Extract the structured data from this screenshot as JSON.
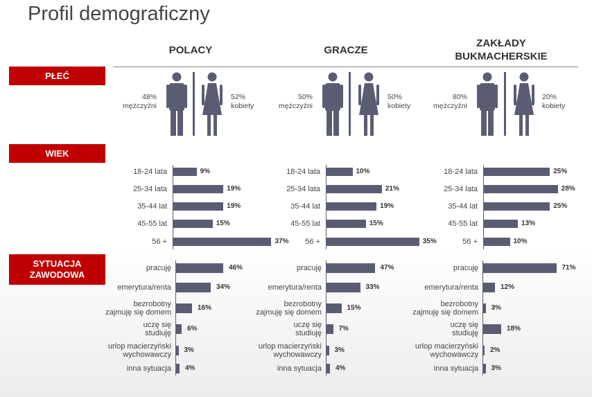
{
  "page": {
    "title": "Profil demograficzny"
  },
  "sections": {
    "sex": "PŁEĆ",
    "age": "WIEK",
    "work_line1": "SYTUACJA",
    "work_line2": "ZAWODOWA"
  },
  "colors": {
    "bar": "#5a5d72",
    "section_bg": "#c00000"
  },
  "chart_data": [
    {
      "type": "bar",
      "title": "PŁEĆ",
      "categories": [
        "mężczyźni",
        "kobiety"
      ],
      "series": [
        {
          "name": "POLACY",
          "values": [
            48,
            52
          ],
          "labels": [
            "48%",
            "52%"
          ]
        },
        {
          "name": "GRACZE",
          "values": [
            50,
            50
          ],
          "labels": [
            "50%",
            "50%"
          ]
        },
        {
          "name": "ZAKŁADY BUKMACHERSKIE",
          "values": [
            80,
            20
          ],
          "labels": [
            "80%",
            "20%"
          ]
        }
      ]
    },
    {
      "type": "bar",
      "title": "WIEK",
      "categories": [
        "18-24 lata",
        "25-34 lata",
        "35-44 lat",
        "45-55 lat",
        "56 +"
      ],
      "series": [
        {
          "name": "POLACY",
          "values": [
            9,
            19,
            19,
            15,
            37
          ],
          "labels": [
            "9%",
            "19%",
            "19%",
            "15%",
            "37%"
          ]
        },
        {
          "name": "GRACZE",
          "values": [
            10,
            21,
            19,
            15,
            35
          ],
          "labels": [
            "10%",
            "21%",
            "19%",
            "15%",
            "35%"
          ]
        },
        {
          "name": "ZAKŁADY BUKMACHERSKIE",
          "values": [
            25,
            28,
            25,
            13,
            10
          ],
          "labels": [
            "25%",
            "28%",
            "25%",
            "13%",
            "10%"
          ]
        }
      ]
    },
    {
      "type": "bar",
      "title": "SYTUACJA ZAWODOWA",
      "categories": [
        [
          "pracuję"
        ],
        [
          "emerytura/renta"
        ],
        [
          "bezrobotny",
          "zajmuję się domem"
        ],
        [
          "uczę się",
          "studiuję"
        ],
        [
          "urlop macierzyński",
          "wychowawczy"
        ],
        [
          "inna sytuacja"
        ]
      ],
      "series": [
        {
          "name": "POLACY",
          "values": [
            46,
            34,
            16,
            6,
            3,
            4
          ],
          "labels": [
            "46%",
            "34%",
            "16%",
            "6%",
            "3%",
            "4%"
          ]
        },
        {
          "name": "GRACZE",
          "values": [
            47,
            33,
            15,
            7,
            3,
            4
          ],
          "labels": [
            "47%",
            "33%",
            "15%",
            "7%",
            "3%",
            "4%"
          ]
        },
        {
          "name": "ZAKŁADY BUKMACHERSKIE",
          "values": [
            71,
            12,
            3,
            18,
            2,
            3
          ],
          "labels": [
            "71%",
            "12%",
            "3%",
            "18%",
            "2%",
            "3%"
          ]
        }
      ]
    }
  ]
}
